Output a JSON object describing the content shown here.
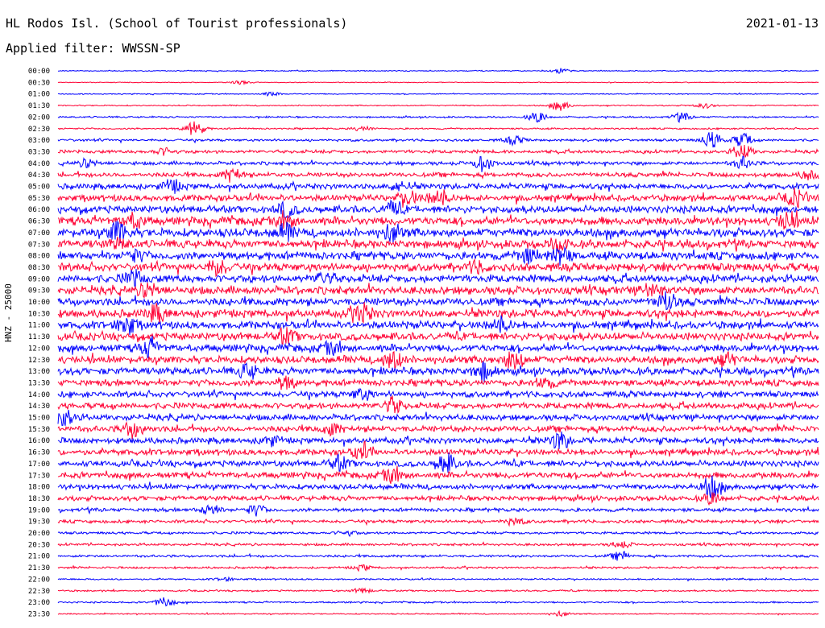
{
  "header": {
    "station": "HL Rodos Isl. (School of Tourist professionals)",
    "date": "2021-01-13",
    "filter": "Applied filter: WWSSN-SP"
  },
  "chart_data": {
    "type": "line",
    "title": "HL Rodos Isl. (School of Tourist professionals)",
    "ylabel": "HNZ - 25000",
    "colors": [
      "#0000ff",
      "#ff0033"
    ],
    "row_labels": [
      "00:00",
      "00:30",
      "01:00",
      "01:30",
      "02:00",
      "02:30",
      "03:00",
      "03:30",
      "04:00",
      "04:30",
      "05:00",
      "05:30",
      "06:00",
      "06:30",
      "07:00",
      "07:30",
      "08:00",
      "08:30",
      "09:00",
      "09:30",
      "10:00",
      "10:30",
      "11:00",
      "11:30",
      "12:00",
      "12:30",
      "13:00",
      "13:30",
      "14:00",
      "14:30",
      "15:00",
      "15:30",
      "16:00",
      "16:30",
      "17:00",
      "17:30",
      "18:00",
      "18:30",
      "19:00",
      "19:30",
      "20:00",
      "20:30",
      "21:00",
      "21:30",
      "22:00",
      "22:30",
      "23:00",
      "23:30"
    ],
    "noise_level": [
      0.5,
      0.4,
      0.5,
      0.6,
      0.8,
      0.8,
      1.2,
      1.6,
      1.8,
      2.2,
      2.8,
      3.2,
      3.6,
      4.0,
      4.2,
      4.0,
      4.0,
      4.0,
      3.8,
      4.0,
      3.8,
      4.0,
      3.8,
      3.8,
      3.6,
      3.6,
      3.6,
      3.2,
      3.0,
      3.0,
      3.0,
      3.0,
      3.0,
      3.0,
      3.0,
      3.0,
      2.6,
      2.4,
      1.8,
      1.6,
      1.2,
      1.2,
      1.2,
      1.0,
      0.8,
      0.8,
      0.8,
      0.6
    ],
    "events": [
      [
        [
          0.66,
          3
        ]
      ],
      [
        [
          0.24,
          2
        ]
      ],
      [
        [
          0.28,
          2
        ]
      ],
      [
        [
          0.66,
          6
        ],
        [
          0.85,
          3
        ]
      ],
      [
        [
          0.63,
          6
        ],
        [
          0.82,
          5
        ]
      ],
      [
        [
          0.18,
          9
        ],
        [
          0.4,
          3
        ]
      ],
      [
        [
          0.6,
          5
        ],
        [
          0.86,
          10
        ],
        [
          0.9,
          8
        ]
      ],
      [
        [
          0.14,
          4
        ],
        [
          0.9,
          9
        ]
      ],
      [
        [
          0.04,
          5
        ],
        [
          0.56,
          9
        ],
        [
          0.9,
          7
        ]
      ],
      [
        [
          0.23,
          8
        ],
        [
          0.99,
          6
        ]
      ],
      [
        [
          0.15,
          7
        ],
        [
          0.45,
          5
        ]
      ],
      [
        [
          0.46,
          8
        ],
        [
          0.5,
          10
        ],
        [
          0.97,
          9
        ]
      ],
      [
        [
          0.3,
          8
        ],
        [
          0.44,
          7
        ]
      ],
      [
        [
          0.1,
          8
        ],
        [
          0.3,
          7
        ],
        [
          0.96,
          10
        ]
      ],
      [
        [
          0.08,
          12
        ],
        [
          0.3,
          8
        ],
        [
          0.44,
          10
        ]
      ],
      [
        [
          0.08,
          5
        ],
        [
          0.66,
          7
        ]
      ],
      [
        [
          0.1,
          6
        ],
        [
          0.62,
          8
        ],
        [
          0.66,
          10
        ]
      ],
      [
        [
          0.21,
          9
        ],
        [
          0.55,
          6
        ]
      ],
      [
        [
          0.1,
          8
        ],
        [
          0.35,
          7
        ]
      ],
      [
        [
          0.12,
          9
        ],
        [
          0.78,
          7
        ]
      ],
      [
        [
          0.8,
          10
        ]
      ],
      [
        [
          0.13,
          9
        ],
        [
          0.4,
          11
        ]
      ],
      [
        [
          0.09,
          11
        ],
        [
          0.58,
          8
        ]
      ],
      [
        [
          0.3,
          8
        ]
      ],
      [
        [
          0.12,
          10
        ],
        [
          0.36,
          6
        ]
      ],
      [
        [
          0.44,
          11
        ],
        [
          0.6,
          11
        ],
        [
          0.88,
          7
        ]
      ],
      [
        [
          0.25,
          8
        ],
        [
          0.56,
          11
        ]
      ],
      [
        [
          0.3,
          7
        ],
        [
          0.64,
          6
        ]
      ],
      [
        [
          0.4,
          6
        ]
      ],
      [
        [
          0.44,
          9
        ]
      ],
      [
        [
          0.01,
          9
        ]
      ],
      [
        [
          0.1,
          10
        ],
        [
          0.36,
          6
        ]
      ],
      [
        [
          0.28,
          5
        ],
        [
          0.66,
          10
        ]
      ],
      [
        [
          0.4,
          9
        ]
      ],
      [
        [
          0.37,
          8
        ],
        [
          0.51,
          12
        ]
      ],
      [
        [
          0.44,
          8
        ]
      ],
      [
        [
          0.86,
          12
        ]
      ],
      [
        [
          0.86,
          6
        ]
      ],
      [
        [
          0.2,
          6
        ],
        [
          0.26,
          6
        ]
      ],
      [
        [
          0.6,
          4
        ]
      ],
      [
        [
          0.38,
          3
        ]
      ],
      [
        [
          0.74,
          4
        ]
      ],
      [
        [
          0.74,
          5
        ]
      ],
      [
        [
          0.4,
          3
        ]
      ],
      [
        [
          0.22,
          2
        ]
      ],
      [
        [
          0.4,
          3
        ]
      ],
      [
        [
          0.14,
          6
        ]
      ],
      [
        [
          0.66,
          3
        ]
      ]
    ]
  }
}
